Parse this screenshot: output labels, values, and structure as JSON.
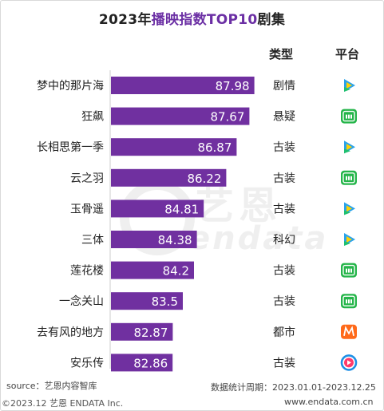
{
  "title": {
    "prefix": "2023年",
    "highlight": "播映指数TOP10",
    "suffix": "剧集"
  },
  "headers": {
    "type": "类型",
    "platform": "平台"
  },
  "watermark": {
    "cn": "艺恩",
    "en": "endata"
  },
  "footer": {
    "source": "source：艺恩内容智库",
    "copyright": "©2023.12 艺恩 ENDATA Inc.",
    "period": "数据统计周期：2023.01.01-2023.12.25",
    "url": "www.endata.com.cn"
  },
  "colors": {
    "bar": "#7030a0",
    "bar_light": "#8c5db8",
    "title_highlight": "#6b2fa4"
  },
  "platform_icons": {
    "tencent": "tencent-video-icon",
    "iqiyi": "iqiyi-icon",
    "mango": "mango-tv-icon",
    "youku": "youku-icon"
  },
  "chart_data": {
    "type": "bar",
    "orientation": "horizontal",
    "categories": [
      "梦中的那片海",
      "狂飙",
      "长相思第一季",
      "云之羽",
      "玉骨遥",
      "三体",
      "莲花楼",
      "一念关山",
      "去有风的地方",
      "安乐传"
    ],
    "values": [
      87.98,
      87.67,
      86.87,
      86.22,
      84.81,
      84.38,
      84.2,
      83.5,
      82.87,
      82.86
    ],
    "labels": [
      "87.98",
      "87.67",
      "86.87",
      "86.22",
      "84.81",
      "84.38",
      "84.2",
      "83.5",
      "82.87",
      "82.86"
    ],
    "types": [
      "剧情",
      "悬疑",
      "古装",
      "古装",
      "古装",
      "科幻",
      "古装",
      "古装",
      "都市",
      "古装"
    ],
    "platforms": [
      "tencent",
      "iqiyi",
      "tencent",
      "iqiyi",
      "tencent",
      "tencent",
      "iqiyi",
      "iqiyi",
      "mango",
      "youku"
    ],
    "xlim": [
      79,
      88.2
    ],
    "grid": false
  }
}
